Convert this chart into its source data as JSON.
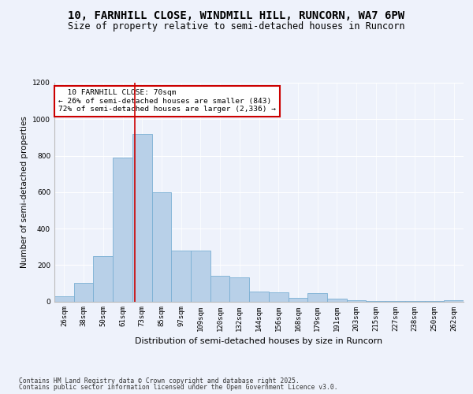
{
  "title_line1": "10, FARNHILL CLOSE, WINDMILL HILL, RUNCORN, WA7 6PW",
  "title_line2": "Size of property relative to semi-detached houses in Runcorn",
  "xlabel": "Distribution of semi-detached houses by size in Runcorn",
  "ylabel": "Number of semi-detached properties",
  "categories": [
    "26sqm",
    "38sqm",
    "50sqm",
    "61sqm",
    "73sqm",
    "85sqm",
    "97sqm",
    "109sqm",
    "120sqm",
    "132sqm",
    "144sqm",
    "156sqm",
    "168sqm",
    "179sqm",
    "191sqm",
    "203sqm",
    "215sqm",
    "227sqm",
    "238sqm",
    "250sqm",
    "262sqm"
  ],
  "values": [
    30,
    100,
    250,
    790,
    920,
    600,
    280,
    280,
    140,
    130,
    55,
    50,
    20,
    45,
    15,
    8,
    4,
    3,
    2,
    1,
    8
  ],
  "bar_color": "#b8d0e8",
  "bar_edge_color": "#7aafd4",
  "vline_x_idx": 3.62,
  "property_label": "10 FARNHILL CLOSE: 70sqm",
  "pct_smaller": 26,
  "pct_larger": 72,
  "n_smaller": 843,
  "n_larger": 2336,
  "vline_color": "#cc0000",
  "annotation_box_color": "#cc0000",
  "ylim": [
    0,
    1200
  ],
  "yticks": [
    0,
    200,
    400,
    600,
    800,
    1000,
    1200
  ],
  "footer_line1": "Contains HM Land Registry data © Crown copyright and database right 2025.",
  "footer_line2": "Contains public sector information licensed under the Open Government Licence v3.0.",
  "bg_color": "#eef2fb",
  "plot_bg_color": "#eef2fb",
  "title1_fontsize": 10,
  "title2_fontsize": 8.5,
  "ylabel_fontsize": 7.5,
  "xlabel_fontsize": 8,
  "tick_fontsize": 6.5,
  "annot_fontsize": 6.8,
  "footer_fontsize": 5.8
}
